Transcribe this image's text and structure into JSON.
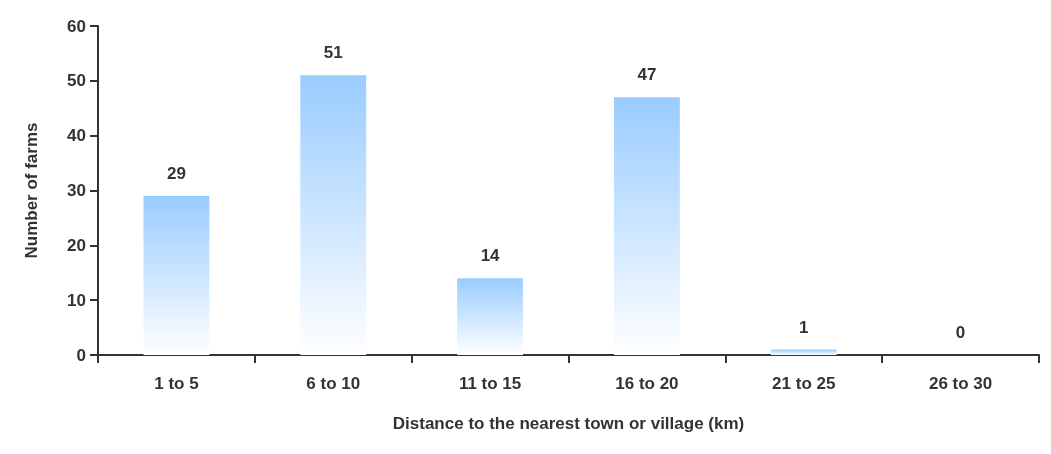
{
  "chart_data": {
    "type": "bar",
    "xlabel": "Distance to the nearest town or village (km)",
    "ylabel": "Number of farms",
    "categories": [
      "1 to 5",
      "6 to 10",
      "11 to 15",
      "16 to 20",
      "21 to 25",
      "26 to 30"
    ],
    "values": [
      29,
      51,
      14,
      47,
      1,
      0
    ],
    "color": "#99ccff",
    "ylim": [
      0,
      60
    ],
    "yticks": [
      0,
      10,
      20,
      30,
      40,
      50,
      60
    ],
    "grid": false,
    "data_labels": true
  }
}
